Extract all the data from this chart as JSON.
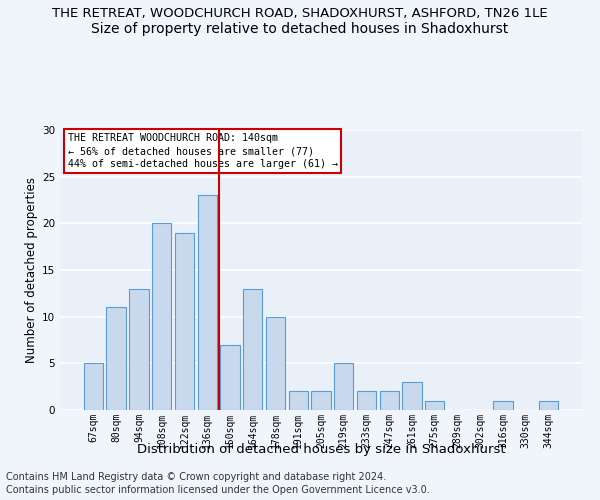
{
  "title1": "THE RETREAT, WOODCHURCH ROAD, SHADOXHURST, ASHFORD, TN26 1LE",
  "title2": "Size of property relative to detached houses in Shadoxhurst",
  "xlabel": "Distribution of detached houses by size in Shadoxhurst",
  "ylabel": "Number of detached properties",
  "categories": [
    "67sqm",
    "80sqm",
    "94sqm",
    "108sqm",
    "122sqm",
    "136sqm",
    "150sqm",
    "164sqm",
    "178sqm",
    "191sqm",
    "205sqm",
    "219sqm",
    "233sqm",
    "247sqm",
    "261sqm",
    "275sqm",
    "289sqm",
    "302sqm",
    "316sqm",
    "330sqm",
    "344sqm"
  ],
  "values": [
    5,
    11,
    13,
    20,
    19,
    23,
    7,
    13,
    10,
    2,
    2,
    5,
    2,
    2,
    3,
    1,
    0,
    0,
    1,
    0,
    1
  ],
  "bar_color": "#c9d9ed",
  "bar_edge_color": "#5b9bd5",
  "red_line_x": 5.5,
  "red_line_color": "#cc0000",
  "ylim": [
    0,
    30
  ],
  "yticks": [
    0,
    5,
    10,
    15,
    20,
    25,
    30
  ],
  "annotation_lines": [
    "THE RETREAT WOODCHURCH ROAD: 140sqm",
    "← 56% of detached houses are smaller (77)",
    "44% of semi-detached houses are larger (61) →"
  ],
  "annotation_box_color": "#ffffff",
  "annotation_box_edge": "#cc0000",
  "footnote1": "Contains HM Land Registry data © Crown copyright and database right 2024.",
  "footnote2": "Contains public sector information licensed under the Open Government Licence v3.0.",
  "bg_color": "#eaf0f8",
  "fig_bg_color": "#f0f5fb",
  "grid_color": "#ffffff",
  "title1_fontsize": 9.5,
  "title2_fontsize": 10,
  "xlabel_fontsize": 9.5,
  "ylabel_fontsize": 8.5,
  "tick_fontsize": 7.0,
  "footnote_fontsize": 7.0
}
